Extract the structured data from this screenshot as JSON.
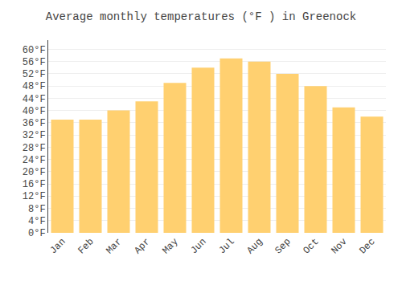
{
  "chart_data": {
    "type": "bar",
    "title": "Average monthly temperatures (°F ) in Greenock",
    "categories": [
      "Jan",
      "Feb",
      "Mar",
      "Apr",
      "May",
      "Jun",
      "Jul",
      "Aug",
      "Sep",
      "Oct",
      "Nov",
      "Dec"
    ],
    "values": [
      37,
      37,
      40,
      43,
      49,
      54,
      57,
      56,
      52,
      48,
      41,
      38
    ],
    "color": "#FFD070",
    "ylim": [
      0,
      63
    ],
    "yticks": [
      {
        "value": 0,
        "label": "0°F"
      },
      {
        "value": 4,
        "label": "4°F"
      },
      {
        "value": 8,
        "label": "8°F"
      },
      {
        "value": 12,
        "label": "12°F"
      },
      {
        "value": 16,
        "label": "16°F"
      },
      {
        "value": 20,
        "label": "20°F"
      },
      {
        "value": 24,
        "label": "24°F"
      },
      {
        "value": 28,
        "label": "28°F"
      },
      {
        "value": 32,
        "label": "32°F"
      },
      {
        "value": 36,
        "label": "36°F"
      },
      {
        "value": 40,
        "label": "40°F"
      },
      {
        "value": 44,
        "label": "44°F"
      },
      {
        "value": 48,
        "label": "48°F"
      },
      {
        "value": 52,
        "label": "52°F"
      },
      {
        "value": 56,
        "label": "56°F"
      },
      {
        "value": 60,
        "label": "60°F"
      }
    ],
    "grid": true
  }
}
